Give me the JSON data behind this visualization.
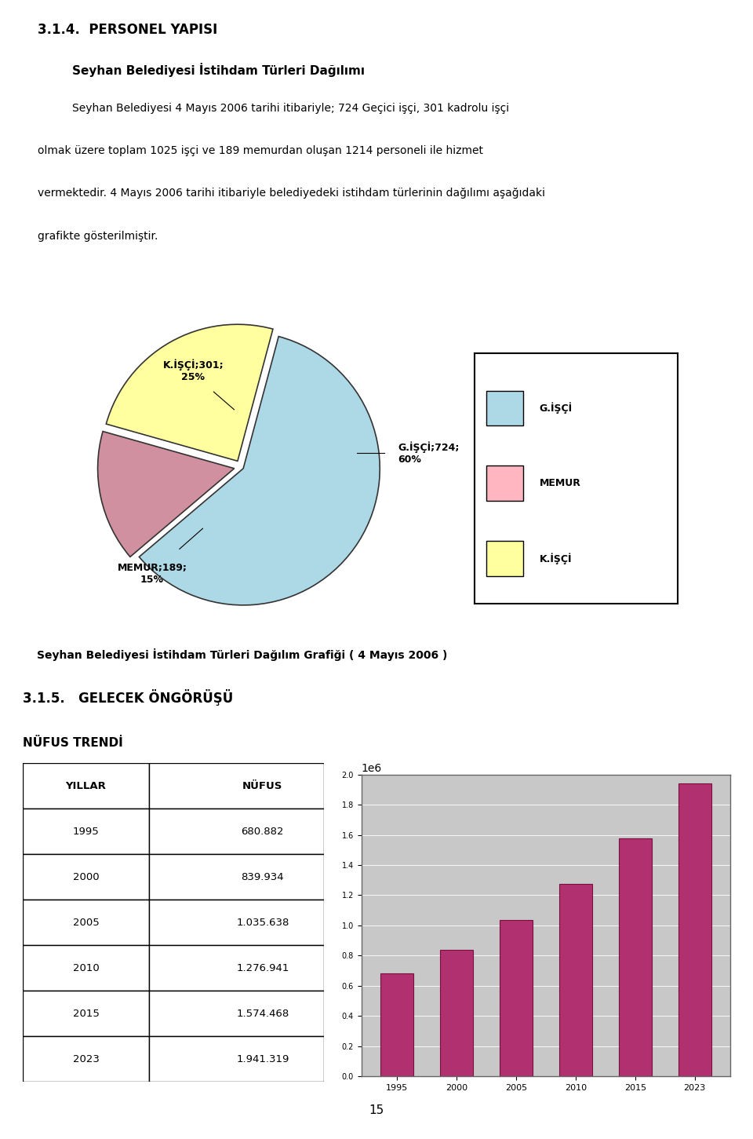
{
  "page_title": "3.1.4.  PERSONEL YAPISI",
  "section_title": "Seyhan Belediyesi İstihdam Türleri Dağılımı",
  "para1": "Seyhan Belediyesi 4 Mayıs 2006 tarihi itibariyle; 724 Geçici işçi, 301 kadrolu işçi",
  "para2": "olmak üzere toplam 1025 işçi ve 189 memurdan oluşan 1214 personeli ile hizmet",
  "para3": "vermektedir. 4 Mayıs 2006 tarihi itibariyle belediyedeki istihdam türlerinin dağılımı aşağıdaki",
  "para4": "grafikte gösterilmiştir.",
  "pie_values": [
    724,
    189,
    301
  ],
  "pie_colors": [
    "#add8e6",
    "#d090a0",
    "#ffffa0"
  ],
  "pie_shadow_color": "#708090",
  "pie_explode": [
    0.02,
    0.05,
    0.05
  ],
  "pie_legend_labels": [
    "G.İŞÇİ",
    "MEMUR",
    "K.İŞÇİ"
  ],
  "pie_legend_colors": [
    "#add8e6",
    "#ffb6c1",
    "#ffffa0"
  ],
  "pie_caption": "Seyhan Belediyesi İstihdam Türleri Dağılım Grafiği ( 4 Mayıs 2006 )",
  "label_gisci": "G.İŞÇİ;724;\n60%",
  "label_memur": "MEMUR;189;\n15%",
  "label_kisci": "K.İŞÇİ;301;\n25%",
  "section2_title": "3.1.5.   GELECEK ÖNGÖRÜŞÜ",
  "nufus_title": "NÜFUS TRENDİ",
  "table_header_col1": "YILLAR",
  "table_header_col2": "NÜFUS",
  "table_years": [
    "1995",
    "2000",
    "2005",
    "2010",
    "2015",
    "2023"
  ],
  "table_values": [
    680882,
    839934,
    1035638,
    1276941,
    1574468,
    1941319
  ],
  "table_values_display": [
    "680.882",
    "839.934",
    "1.035.638",
    "1.276.941",
    "1.574.468",
    "1.941.319"
  ],
  "bar_color": "#b03070",
  "bar_yticks": [
    0,
    200000,
    400000,
    600000,
    800000,
    1000000,
    1200000,
    1400000,
    1600000,
    1800000,
    2000000
  ],
  "bar_bg": "#c8c8c8",
  "page_number": "15",
  "bg_color": "#ffffff"
}
